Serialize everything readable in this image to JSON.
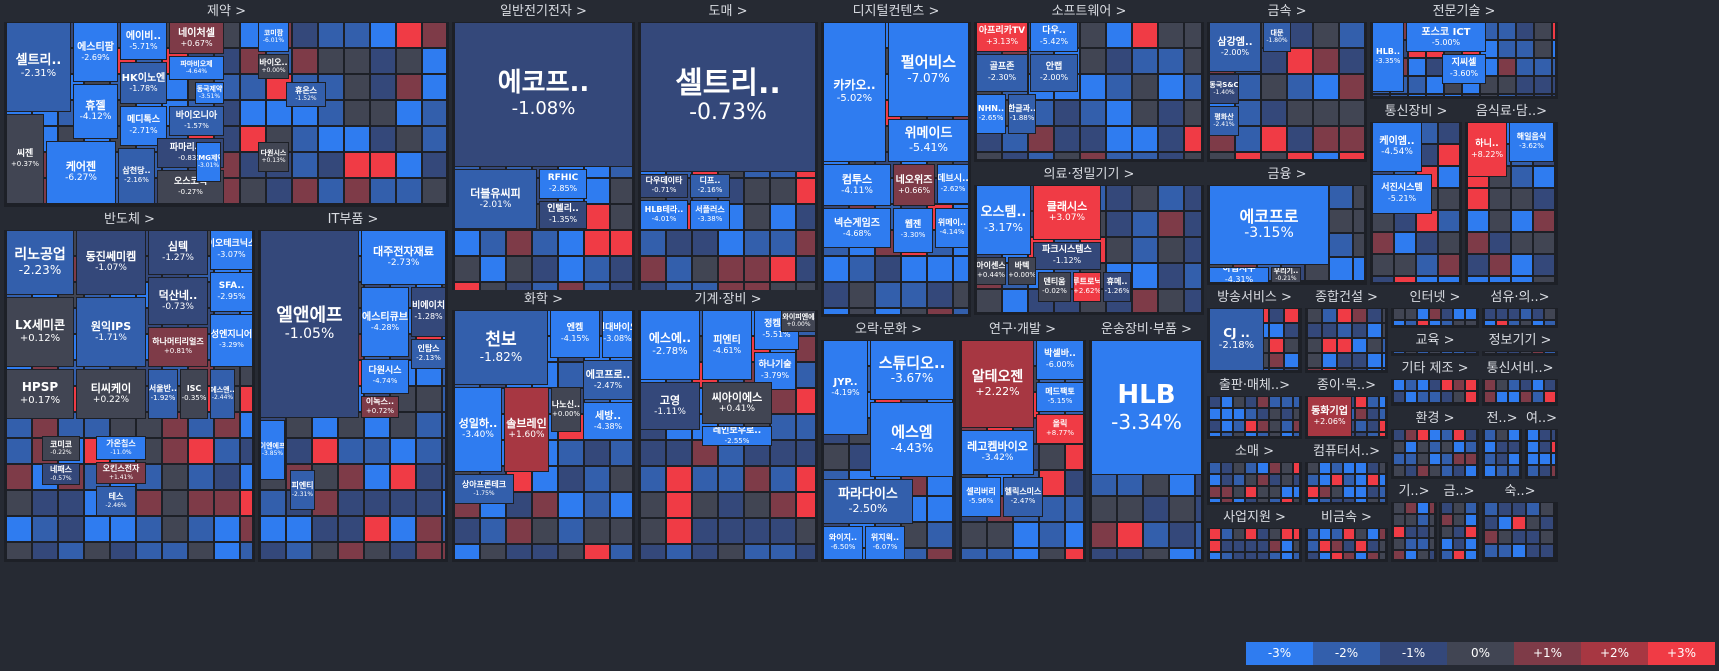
{
  "chart_data": {
    "type": "treemap",
    "color_scale": {
      "-3": "#2f7cf0",
      "-2": "#335fac",
      "-1": "#34487a",
      "0": "#414553",
      "1": "#7e3b48",
      "2": "#a73742",
      "3": "#f03b45"
    },
    "legend": [
      "-3%",
      "-2%",
      "-1%",
      "0%",
      "+1%",
      "+2%",
      "+3%"
    ],
    "sectors": [
      {
        "name": "제약 >",
        "tiles": [
          {
            "n": "셀트리..",
            "p": "-2.31%"
          },
          {
            "n": "에스티팜",
            "p": "-2.69%"
          },
          {
            "n": "에이비..",
            "p": "-5.71%"
          },
          {
            "n": "네이처셀",
            "p": "+0.67%"
          },
          {
            "n": "HK이노엔",
            "p": "-1.78%"
          },
          {
            "n": "휴젤",
            "p": "-4.12%"
          },
          {
            "n": "씨젠",
            "p": "+0.37%"
          },
          {
            "n": "메디톡스",
            "p": "-2.71%"
          },
          {
            "n": "바이오니아",
            "p": "-1.57%"
          },
          {
            "n": "케어젠",
            "p": "-6.27%"
          },
          {
            "n": "삼천당..",
            "p": "-2.16%"
          },
          {
            "n": "파마리서치",
            "p": "-0.83%"
          },
          {
            "n": "오스코텍",
            "p": "-0.27%"
          },
          {
            "n": "파마비오제",
            "p": "-4.64%"
          },
          {
            "n": "동국제약",
            "p": "-3.51%"
          },
          {
            "n": "코미팜",
            "p": "-6.01%"
          },
          {
            "n": "바이오..",
            "p": "+0.00%"
          },
          {
            "n": "휴온스",
            "p": "-1.52%"
          },
          {
            "n": "CMG제약",
            "p": "-3.01%"
          },
          {
            "n": "다원시스",
            "p": "+0.13%"
          }
        ]
      },
      {
        "name": "일반전기전자 >",
        "tiles": [
          {
            "n": "에코프..",
            "p": "-1.08%"
          },
          {
            "n": "더블유씨피",
            "p": "-2.01%"
          },
          {
            "n": "RFHIC",
            "p": "-2.85%"
          },
          {
            "n": "인텔리..",
            "p": "-1.35%"
          }
        ]
      },
      {
        "name": "도매 >",
        "tiles": [
          {
            "n": "셀트리..",
            "p": "-0.73%"
          },
          {
            "n": "다우데이타",
            "p": "-0.71%"
          },
          {
            "n": "디프..",
            "p": "-2.16%"
          },
          {
            "n": "HLB테라..",
            "p": "-4.01%"
          },
          {
            "n": "서플러스",
            "p": "-3.38%"
          }
        ]
      },
      {
        "name": "디지털컨텐츠 >",
        "tiles": [
          {
            "n": "카카오..",
            "p": "-5.02%"
          },
          {
            "n": "펄어비스",
            "p": "-7.07%"
          },
          {
            "n": "위메이드",
            "p": "-5.41%"
          },
          {
            "n": "컴투스",
            "p": "-4.11%"
          },
          {
            "n": "네오위즈",
            "p": "+0.66%"
          },
          {
            "n": "데브시..",
            "p": "-2.62%"
          },
          {
            "n": "넥슨게임즈",
            "p": "-4.68%"
          },
          {
            "n": "웹젠",
            "p": "-3.30%"
          },
          {
            "n": "위메이..",
            "p": "-4.14%"
          }
        ]
      },
      {
        "name": "소프트웨어 >",
        "tiles": [
          {
            "n": "아프리카TV",
            "p": "+3.13%"
          },
          {
            "n": "다우..",
            "p": "-5.42%"
          },
          {
            "n": "골프존",
            "p": "-2.30%"
          },
          {
            "n": "안랩",
            "p": "-2.00%"
          },
          {
            "n": "NHN..",
            "p": "-2.65%"
          },
          {
            "n": "한글과..",
            "p": "-1.88%"
          }
        ]
      },
      {
        "name": "금속 >",
        "tiles": [
          {
            "n": "삼강엠..",
            "p": "-2.00%"
          },
          {
            "n": "대문",
            "p": "-1.80%"
          },
          {
            "n": "동국S&C",
            "p": "-1.40%"
          },
          {
            "n": "평화산",
            "p": "-2.41%"
          }
        ]
      },
      {
        "name": "전문기술 >",
        "tiles": [
          {
            "n": "포스코 ICT",
            "p": "-5.00%"
          },
          {
            "n": "HLB..",
            "p": "-3.35%"
          },
          {
            "n": "지씨셀",
            "p": "-3.60%"
          }
        ]
      },
      {
        "name": "금융 >",
        "tiles": [
          {
            "n": "에코프로",
            "p": "-3.15%"
          },
          {
            "n": "하림지주",
            "p": "-4.31%"
          },
          {
            "n": "우리기..",
            "p": "-0.21%"
          }
        ]
      },
      {
        "name": "통신장비 >",
        "tiles": [
          {
            "n": "케이엠..",
            "p": "-4.54%"
          },
          {
            "n": "서진시스템",
            "p": "-5.21%"
          }
        ]
      },
      {
        "name": "음식료·담..>",
        "tiles": [
          {
            "n": "하니..",
            "p": "+8.22%"
          },
          {
            "n": "해일음식",
            "p": "-3.62%"
          }
        ]
      },
      {
        "name": "반도체 >",
        "tiles": [
          {
            "n": "리노공업",
            "p": "-2.23%"
          },
          {
            "n": "동진쎄미켐",
            "p": "-1.07%"
          },
          {
            "n": "심텍",
            "p": "-1.27%"
          },
          {
            "n": "이오테크닉스",
            "p": "-3.07%"
          },
          {
            "n": "LX세미콘",
            "p": "+0.12%"
          },
          {
            "n": "원익IPS",
            "p": "-1.71%"
          },
          {
            "n": "덕산네..",
            "p": "-0.73%"
          },
          {
            "n": "SFA..",
            "p": "-2.95%"
          },
          {
            "n": "HPSP",
            "p": "+0.17%"
          },
          {
            "n": "티씨케이",
            "p": "+0.22%"
          },
          {
            "n": "하나머티리얼즈",
            "p": "+0.81%"
          },
          {
            "n": "주성엔지니어링",
            "p": "-3.29%"
          },
          {
            "n": "서울반..",
            "p": "-1.92%"
          },
          {
            "n": "ISC",
            "p": "-0.35%"
          },
          {
            "n": "에스앤..",
            "p": "-2.44%"
          },
          {
            "n": "코미코",
            "p": "-0.22%"
          },
          {
            "n": "네패스",
            "p": "-0.57%"
          },
          {
            "n": "테스",
            "p": "-2.46%"
          },
          {
            "n": "오킨스전자",
            "p": "+1.41%"
          },
          {
            "n": "가온칩스",
            "p": "-11.0%"
          }
        ]
      },
      {
        "name": "IT부품 >",
        "tiles": [
          {
            "n": "엘앤에프",
            "p": "-1.05%"
          },
          {
            "n": "대주전자재료",
            "p": "-2.73%"
          },
          {
            "n": "에스티큐브",
            "p": "-4.28%"
          },
          {
            "n": "비에이치",
            "p": "-1.28%"
          },
          {
            "n": "다원시스",
            "p": "-4.74%"
          },
          {
            "n": "인탑스",
            "p": "-2.13%"
          },
          {
            "n": "이녹스..",
            "p": "+0.72%"
          },
          {
            "n": "이엔에프",
            "p": "-3.85%"
          },
          {
            "n": "피엔티",
            "p": "-2.31%"
          }
        ]
      },
      {
        "name": "화학 >",
        "tiles": [
          {
            "n": "천보",
            "p": "-1.82%"
          },
          {
            "n": "엔켐",
            "p": "-4.15%"
          },
          {
            "n": "현대바이오",
            "p": "-3.08%"
          },
          {
            "n": "성일하..",
            "p": "-3.40%"
          },
          {
            "n": "솔브레인",
            "p": "+1.60%"
          },
          {
            "n": "나노신..",
            "p": "+0.00%"
          },
          {
            "n": "에코프로..",
            "p": "-2.47%"
          },
          {
            "n": "세방..",
            "p": "-4.38%"
          },
          {
            "n": "상아프론테크",
            "p": "-1.75%"
          }
        ]
      },
      {
        "name": "기계·장비 >",
        "tiles": [
          {
            "n": "에스에..",
            "p": "-2.78%"
          },
          {
            "n": "피엔티",
            "p": "-4.61%"
          },
          {
            "n": "정켐스",
            "p": "-5.51%"
          },
          {
            "n": "디와이피엔에프",
            "p": "+0.00%"
          },
          {
            "n": "하나기술",
            "p": "-3.79%"
          },
          {
            "n": "고영",
            "p": "-1.11%"
          },
          {
            "n": "씨아이에스",
            "p": "+0.41%"
          },
          {
            "n": "레인보우로..",
            "p": "-2.55%"
          }
        ]
      },
      {
        "name": "의료·정밀기기 >",
        "tiles": [
          {
            "n": "오스템..",
            "p": "-3.17%"
          },
          {
            "n": "클래시스",
            "p": "+3.07%"
          },
          {
            "n": "파크시스템스",
            "p": "-1.12%"
          },
          {
            "n": "아이센스",
            "p": "+0.44%"
          },
          {
            "n": "바텍",
            "p": "+0.00%"
          },
          {
            "n": "덴티움",
            "p": "-0.02%"
          },
          {
            "n": "루트로닉",
            "p": "+2.62%"
          },
          {
            "n": "휴메..",
            "p": "-1.26%"
          }
        ]
      },
      {
        "name": "방송서비스 >",
        "tiles": [
          {
            "n": "CJ ..",
            "p": "-2.18%"
          }
        ]
      },
      {
        "name": "종합건설 >",
        "tiles": []
      },
      {
        "name": "인터넷 >",
        "tiles": []
      },
      {
        "name": "섬유·의..>",
        "tiles": []
      },
      {
        "name": "오락·문화 >",
        "tiles": [
          {
            "n": "JYP..",
            "p": "-4.19%"
          },
          {
            "n": "스튜디오..",
            "p": "-3.67%"
          },
          {
            "n": "에스엠",
            "p": "-4.43%"
          },
          {
            "n": "파라다이스",
            "p": "-2.50%"
          },
          {
            "n": "와이지..",
            "p": "-6.50%"
          },
          {
            "n": "위지윅..",
            "p": "-6.07%"
          }
        ]
      },
      {
        "name": "연구·개발 >",
        "tiles": [
          {
            "n": "알테오젠",
            "p": "+2.22%"
          },
          {
            "n": "박셀바..",
            "p": "-6.00%"
          },
          {
            "n": "레고켐바이오",
            "p": "-3.42%"
          },
          {
            "n": "셀리버리",
            "p": "-5.96%"
          },
          {
            "n": "헬릭스미스",
            "p": "-2.47%"
          },
          {
            "n": "메드팩토",
            "p": "-5.15%"
          },
          {
            "n": "올릭",
            "p": "+8.77%"
          }
        ]
      },
      {
        "name": "운송장비·부품 >",
        "tiles": [
          {
            "n": "HLB",
            "p": "-3.34%"
          }
        ]
      },
      {
        "name": "교육 >",
        "tiles": []
      },
      {
        "name": "정보기기 >",
        "tiles": []
      },
      {
        "name": "출판·매체..>",
        "tiles": []
      },
      {
        "name": "종이·목..>",
        "tiles": [
          {
            "n": "동화기업",
            "p": "+2.06%"
          }
        ]
      },
      {
        "name": "기타 제조 >",
        "tiles": []
      },
      {
        "name": "통신서비..>",
        "tiles": []
      },
      {
        "name": "소매 >",
        "tiles": []
      },
      {
        "name": "컴퓨터서..>",
        "tiles": []
      },
      {
        "name": "환경 >",
        "tiles": []
      },
      {
        "name": "전..>",
        "tiles": []
      },
      {
        "name": "여..>",
        "tiles": []
      },
      {
        "name": "사업지원 >",
        "tiles": []
      },
      {
        "name": "비금속 >",
        "tiles": []
      },
      {
        "name": "기..>",
        "tiles": []
      },
      {
        "name": "금..>",
        "tiles": []
      },
      {
        "name": "숙..>",
        "tiles": []
      }
    ]
  }
}
